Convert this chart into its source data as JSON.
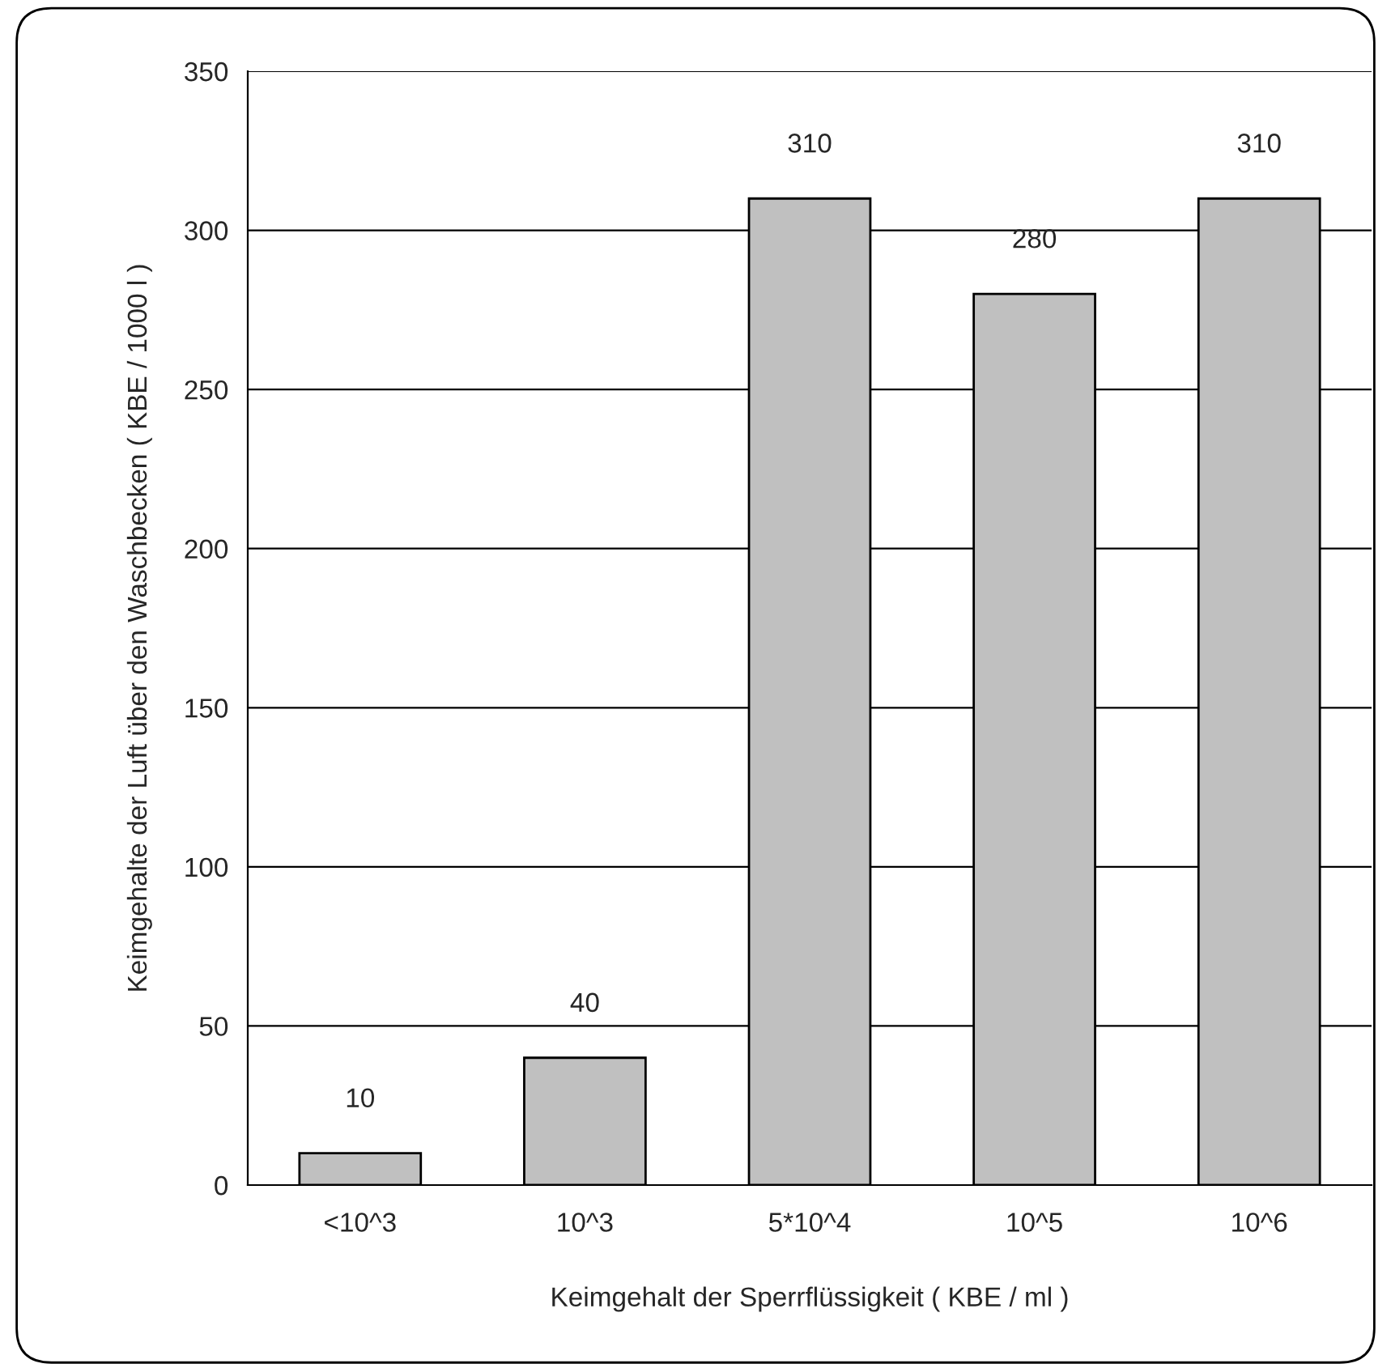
{
  "chart_data": {
    "type": "bar",
    "xlabel": "Keimgehalt der Sperrflüssigkeit ( KBE / ml )",
    "ylabel": "Keimgehalte der Luft über den Waschbecken ( KBE / 1000 l )",
    "categories": [
      "<10^3",
      "10^3",
      "5*10^4",
      "10^5",
      "10^6"
    ],
    "values": [
      10,
      40,
      310,
      280,
      310
    ],
    "color": "#c0c0c0",
    "ylim": [
      0,
      350
    ],
    "yticks": [
      0,
      50,
      100,
      150,
      200,
      250,
      300,
      350
    ],
    "grid": "y",
    "data_labels": true,
    "legend": false
  }
}
